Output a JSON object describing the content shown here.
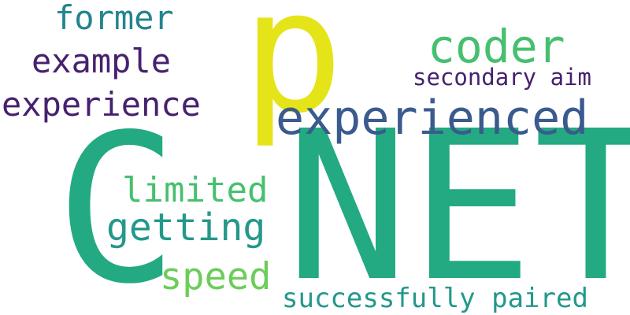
{
  "words": [
    {
      "text": "C",
      "color": "#23aa82"
    },
    {
      "text": "NET",
      "color": "#23aa82"
    },
    {
      "text": "p",
      "color": "#e5e419"
    },
    {
      "text": "experienced",
      "color": "#3b5a8d"
    },
    {
      "text": "coder",
      "color": "#46c06e"
    },
    {
      "text": "secondary aim",
      "color": "#46216e"
    },
    {
      "text": "former",
      "color": "#22848e"
    },
    {
      "text": "example",
      "color": "#46216e"
    },
    {
      "text": "experience",
      "color": "#46216e"
    },
    {
      "text": "limited",
      "color": "#46c06e"
    },
    {
      "text": "getting",
      "color": "#23988b"
    },
    {
      "text": "speed",
      "color": "#6ccd5a"
    },
    {
      "text": "successfully paired",
      "color": "#23988b"
    }
  ]
}
